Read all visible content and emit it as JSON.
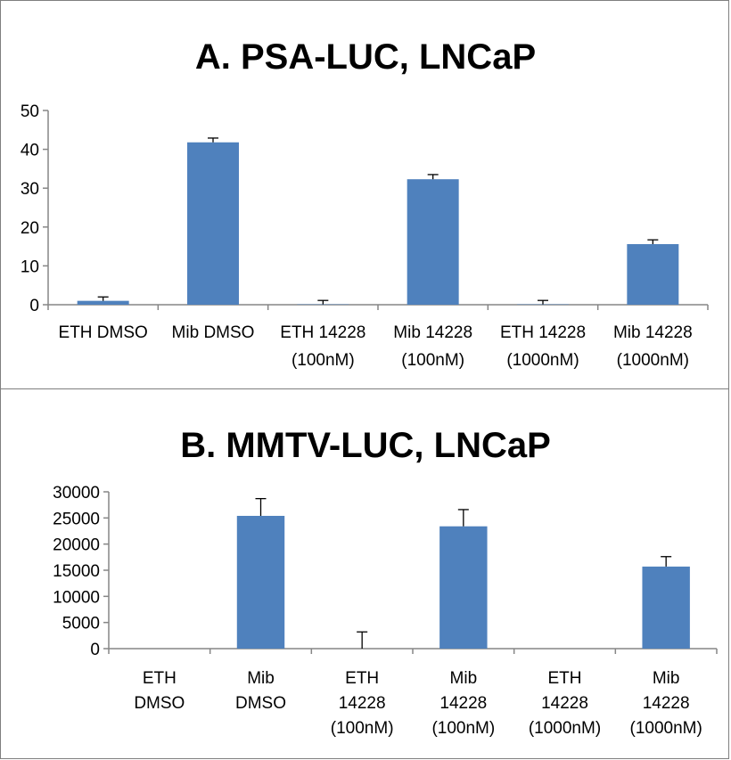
{
  "chart_data": [
    {
      "type": "bar",
      "title": "A. PSA-LUC, LNCaP",
      "xlabel": "",
      "ylabel": "",
      "ylim": [
        0,
        50
      ],
      "yticks": [
        "0",
        "10",
        "20",
        "30",
        "40",
        "50"
      ],
      "grid": false,
      "legend": "none",
      "bar_color": "#4f81bd",
      "categories": [
        [
          "ETH DMSO"
        ],
        [
          "Mib DMSO"
        ],
        [
          "ETH 14228",
          "(100nM)"
        ],
        [
          "Mib 14228",
          "(100nM)"
        ],
        [
          "ETH 14228",
          "(1000nM)"
        ],
        [
          "Mib 14228",
          "(1000nM)"
        ]
      ],
      "values": [
        1.0,
        41.8,
        0.1,
        32.3,
        0.1,
        15.6
      ],
      "errors": [
        1.0,
        1.1,
        1.0,
        1.2,
        1.0,
        1.1
      ]
    },
    {
      "type": "bar",
      "title": "B. MMTV-LUC, LNCaP",
      "xlabel": "",
      "ylabel": "",
      "ylim": [
        0,
        30000
      ],
      "yticks": [
        "0",
        "5000",
        "10000",
        "15000",
        "20000",
        "25000",
        "30000"
      ],
      "grid": false,
      "legend": "none",
      "bar_color": "#4f81bd",
      "categories": [
        [
          "ETH",
          "DMSO"
        ],
        [
          "Mib",
          "DMSO"
        ],
        [
          "ETH",
          "14228",
          "(100nM)"
        ],
        [
          "Mib",
          "14228",
          "(100nM)"
        ],
        [
          "ETH",
          "14228",
          "(1000nM)"
        ],
        [
          "Mib",
          "14228",
          "(1000nM)"
        ]
      ],
      "values": [
        0,
        25400,
        0,
        23400,
        0,
        15700
      ],
      "errors": [
        0,
        3300,
        3200,
        3200,
        0,
        1900
      ]
    }
  ]
}
